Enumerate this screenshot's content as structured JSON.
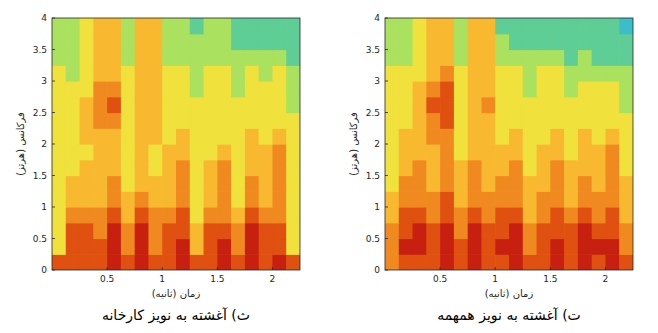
{
  "chart_data": [
    {
      "type": "heatmap",
      "title": "ث) آغشته به نویز کارخانه",
      "x_label": "زمان (ثانیه)",
      "y_label": "فرکانس (هرتز)",
      "xlim": [
        0,
        2.25
      ],
      "ylim": [
        0,
        4
      ],
      "xticks": [
        0.5,
        1,
        1.5,
        2
      ],
      "yticks": [
        0,
        0.5,
        1,
        1.5,
        2,
        2.5,
        3,
        3.5,
        4
      ],
      "zlim": [
        0,
        10
      ],
      "x": [
        0.0625,
        0.1875,
        0.3125,
        0.4375,
        0.5625,
        0.6875,
        0.8125,
        0.9375,
        1.0625,
        1.1875,
        1.3125,
        1.4375,
        1.5625,
        1.6875,
        1.8125,
        1.9375,
        2.0625,
        2.1875
      ],
      "y": [
        0.125,
        0.375,
        0.625,
        0.875,
        1.125,
        1.375,
        1.625,
        1.875,
        2.125,
        2.375,
        2.625,
        2.875,
        3.125,
        3.375,
        3.625,
        3.875
      ],
      "cells": [
        [
          8,
          8,
          8,
          8,
          9,
          8,
          9,
          8,
          8,
          9,
          8,
          8,
          9,
          8,
          9,
          8,
          9,
          8
        ],
        [
          5,
          8,
          8,
          8,
          9,
          7,
          9,
          7,
          8,
          9,
          6,
          8,
          9,
          7,
          9,
          8,
          8,
          5
        ],
        [
          5,
          8,
          8,
          7,
          9,
          7,
          9,
          7,
          8,
          8,
          6,
          8,
          8,
          7,
          9,
          8,
          8,
          5
        ],
        [
          5,
          7,
          7,
          7,
          8,
          6,
          8,
          7,
          7,
          8,
          5,
          7,
          7,
          6,
          8,
          7,
          7,
          5
        ],
        [
          5,
          6,
          6,
          6,
          7,
          6,
          7,
          6,
          6,
          7,
          5,
          6,
          7,
          5,
          7,
          6,
          7,
          5
        ],
        [
          5,
          6,
          6,
          6,
          7,
          5,
          6,
          6,
          6,
          7,
          5,
          6,
          7,
          5,
          7,
          6,
          7,
          5
        ],
        [
          5,
          5,
          6,
          6,
          6,
          5,
          6,
          5,
          6,
          7,
          5,
          6,
          7,
          5,
          6,
          6,
          7,
          5
        ],
        [
          5,
          5,
          5,
          6,
          6,
          5,
          6,
          5,
          6,
          6,
          5,
          5,
          6,
          5,
          6,
          6,
          7,
          5
        ],
        [
          5,
          5,
          6,
          6,
          6,
          5,
          6,
          6,
          5,
          6,
          5,
          5,
          5,
          5,
          6,
          5,
          6,
          5
        ],
        [
          5,
          5,
          6,
          7,
          7,
          5,
          6,
          6,
          5,
          5,
          5,
          5,
          5,
          5,
          5,
          5,
          5,
          5
        ],
        [
          5,
          5,
          6,
          7,
          8,
          5,
          6,
          6,
          5,
          5,
          5,
          5,
          5,
          5,
          5,
          5,
          5,
          4
        ],
        [
          5,
          5,
          5,
          7,
          7,
          5,
          6,
          6,
          5,
          5,
          4,
          5,
          5,
          4,
          5,
          5,
          5,
          4
        ],
        [
          5,
          4,
          5,
          6,
          6,
          5,
          6,
          6,
          5,
          5,
          4,
          5,
          5,
          4,
          5,
          4,
          5,
          4
        ],
        [
          4,
          4,
          5,
          6,
          6,
          4,
          6,
          6,
          4,
          4,
          4,
          4,
          4,
          4,
          4,
          4,
          4,
          3
        ],
        [
          4,
          4,
          5,
          6,
          6,
          4,
          6,
          6,
          4,
          4,
          4,
          4,
          4,
          3,
          3,
          3,
          3,
          3
        ],
        [
          4,
          4,
          5,
          6,
          6,
          4,
          6,
          6,
          4,
          4,
          3,
          4,
          4,
          3,
          3,
          3,
          3,
          3
        ]
      ]
    },
    {
      "type": "heatmap",
      "title": "ت) آغشته به نویز همهمه",
      "x_label": "زمان (ثانیه)",
      "y_label": "فرکانس (هرتز)",
      "xlim": [
        0,
        2.25
      ],
      "ylim": [
        0,
        4
      ],
      "xticks": [
        0.5,
        1,
        1.5,
        2
      ],
      "yticks": [
        0,
        0.5,
        1,
        1.5,
        2,
        2.5,
        3,
        3.5,
        4
      ],
      "zlim": [
        0,
        10
      ],
      "x": [
        0.0625,
        0.1875,
        0.3125,
        0.4375,
        0.5625,
        0.6875,
        0.8125,
        0.9375,
        1.0625,
        1.1875,
        1.3125,
        1.4375,
        1.5625,
        1.6875,
        1.8125,
        1.9375,
        2.0625,
        2.1875
      ],
      "y": [
        0.125,
        0.375,
        0.625,
        0.875,
        1.125,
        1.375,
        1.625,
        1.875,
        2.125,
        2.375,
        2.625,
        2.875,
        3.125,
        3.375,
        3.625,
        3.875
      ],
      "cells": [
        [
          7,
          8,
          8,
          8,
          9,
          8,
          9,
          8,
          8,
          9,
          8,
          8,
          9,
          8,
          9,
          8,
          9,
          8
        ],
        [
          7,
          9,
          9,
          8,
          9,
          8,
          9,
          8,
          9,
          9,
          7,
          8,
          9,
          8,
          9,
          9,
          9,
          7
        ],
        [
          7,
          8,
          9,
          8,
          9,
          7,
          9,
          8,
          8,
          9,
          7,
          8,
          8,
          8,
          9,
          8,
          8,
          7
        ],
        [
          6,
          8,
          8,
          7,
          8,
          7,
          8,
          7,
          8,
          8,
          6,
          7,
          8,
          7,
          8,
          7,
          8,
          6
        ],
        [
          6,
          7,
          7,
          7,
          8,
          6,
          7,
          7,
          7,
          7,
          6,
          7,
          7,
          6,
          7,
          7,
          7,
          6
        ],
        [
          5,
          7,
          7,
          6,
          7,
          6,
          7,
          6,
          7,
          7,
          6,
          6,
          7,
          6,
          7,
          6,
          7,
          6
        ],
        [
          5,
          6,
          7,
          6,
          7,
          6,
          7,
          6,
          6,
          7,
          5,
          6,
          7,
          6,
          6,
          6,
          7,
          5
        ],
        [
          5,
          6,
          6,
          6,
          7,
          5,
          6,
          6,
          6,
          6,
          5,
          6,
          6,
          5,
          6,
          6,
          7,
          5
        ],
        [
          5,
          6,
          6,
          7,
          7,
          5,
          6,
          6,
          5,
          6,
          5,
          5,
          6,
          5,
          6,
          5,
          6,
          5
        ],
        [
          5,
          5,
          6,
          7,
          8,
          5,
          6,
          6,
          5,
          5,
          5,
          5,
          5,
          5,
          5,
          5,
          5,
          5
        ],
        [
          5,
          5,
          6,
          8,
          8,
          5,
          6,
          7,
          5,
          5,
          5,
          5,
          5,
          5,
          5,
          5,
          5,
          4
        ],
        [
          5,
          5,
          6,
          7,
          8,
          5,
          6,
          6,
          5,
          5,
          4,
          5,
          5,
          4,
          5,
          5,
          5,
          4
        ],
        [
          5,
          5,
          5,
          6,
          7,
          5,
          6,
          6,
          5,
          5,
          4,
          5,
          5,
          4,
          4,
          4,
          4,
          4
        ],
        [
          4,
          4,
          5,
          6,
          6,
          4,
          6,
          6,
          4,
          4,
          4,
          4,
          4,
          3,
          4,
          3,
          3,
          3
        ],
        [
          4,
          4,
          5,
          6,
          6,
          4,
          6,
          6,
          4,
          3,
          3,
          3,
          3,
          3,
          3,
          3,
          3,
          3
        ],
        [
          4,
          4,
          5,
          6,
          6,
          4,
          6,
          6,
          3,
          3,
          3,
          3,
          3,
          3,
          3,
          3,
          3,
          2
        ]
      ]
    }
  ]
}
